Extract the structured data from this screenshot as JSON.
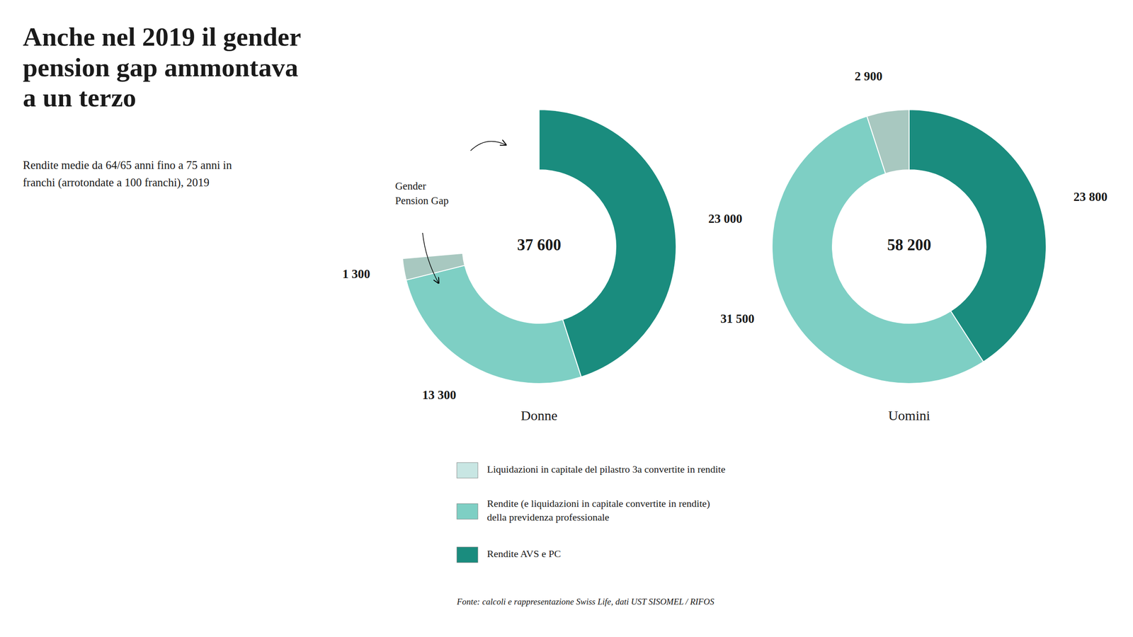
{
  "title": "Anche nel 2019 il gender\npension gap ammontava\na un terzo",
  "subtitle": "Rendite medie da 64/65 anni fino a 75 anni in\nfranchi (arrotondate a 100 franchi), 2019",
  "source": "Fonte: calcoli e rappresentazione Swiss Life, dati UST SISOMEL / RIFOS",
  "legend_entries": [
    {
      "name": "Liquidazioni in capitale del pilastro 3a convertite in rendite",
      "color": "#c8e6e3"
    },
    {
      "name": "Rendite (e liquidazioni in capitale convertite in rendite)\ndella previdenza professionale",
      "color": "#7ecfc4"
    },
    {
      "name": "Rendite AVS e PC",
      "color": "#1a8c7e"
    }
  ],
  "chart_data": [
    {
      "type": "pie",
      "title": "Donne",
      "center_label": "37 600",
      "values": [
        23000,
        13300,
        1300
      ],
      "value_labels": [
        "23 000",
        "13 300",
        "1 300"
      ],
      "colors": [
        "#1a8c7e",
        "#7ecfc4",
        "#a8c8c0"
      ],
      "data_labels": true,
      "annotation": "Gender\nPension Gap"
    },
    {
      "type": "pie",
      "title": "Uomini",
      "center_label": "58 200",
      "values": [
        23800,
        31500,
        2900
      ],
      "value_labels": [
        "23 800",
        "31 500",
        "2 900"
      ],
      "colors": [
        "#1a8c7e",
        "#7ecfc4",
        "#a8c8c0"
      ],
      "data_labels": true
    }
  ]
}
